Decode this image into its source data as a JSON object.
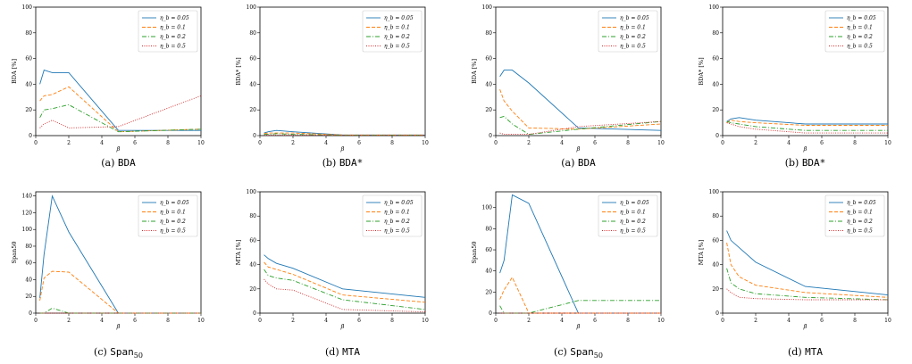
{
  "colors": {
    "series": [
      "#1f77b4",
      "#ff7f0e",
      "#2ca02c",
      "#d62728"
    ],
    "dash": [
      "",
      "4,2",
      "5,2,1,2",
      "1,1.5"
    ]
  },
  "chart_data": [
    {
      "type": "line",
      "caption": "(a) BDA",
      "caption_mono": true,
      "ylabel": "BDA [%]",
      "xlabel": "β",
      "ylim": [
        0,
        100
      ],
      "yticks": [
        0,
        20,
        40,
        60,
        80,
        100
      ],
      "xlim": [
        0,
        10
      ],
      "xticks": [
        0,
        2,
        4,
        6,
        8,
        10
      ],
      "legend": "top-right",
      "series": [
        {
          "name": "η_b = 0.05",
          "x": [
            0.25,
            0.5,
            1,
            2,
            5,
            10
          ],
          "y": [
            40,
            51,
            49,
            49,
            4,
            4
          ]
        },
        {
          "name": "η_b = 0.1",
          "x": [
            0.25,
            0.5,
            1,
            2,
            5,
            10
          ],
          "y": [
            27,
            31,
            32,
            38,
            3,
            5
          ]
        },
        {
          "name": "η_b = 0.2",
          "x": [
            0.25,
            0.5,
            1,
            2,
            5,
            10
          ],
          "y": [
            14,
            20,
            21,
            24,
            3,
            5
          ]
        },
        {
          "name": "η_b = 0.5",
          "x": [
            0.25,
            0.5,
            1,
            2,
            5,
            10
          ],
          "y": [
            6,
            9,
            12,
            6,
            7,
            31
          ]
        }
      ]
    },
    {
      "type": "line",
      "caption": "(b) BDA*",
      "caption_mono": true,
      "ylabel": "BDA* [%]",
      "xlabel": "β",
      "ylim": [
        0,
        100
      ],
      "yticks": [
        0,
        20,
        40,
        60,
        80,
        100
      ],
      "xlim": [
        0,
        10
      ],
      "xticks": [
        0,
        2,
        4,
        6,
        8,
        10
      ],
      "legend": "top-right",
      "series": [
        {
          "name": "η_b = 0.05",
          "x": [
            0.25,
            0.5,
            1,
            2,
            5,
            10
          ],
          "y": [
            2,
            3,
            4,
            3,
            0.5,
            0.5
          ]
        },
        {
          "name": "η_b = 0.1",
          "x": [
            0.25,
            0.5,
            1,
            2,
            5,
            10
          ],
          "y": [
            1.5,
            2,
            2,
            2,
            0.5,
            0.5
          ]
        },
        {
          "name": "η_b = 0.2",
          "x": [
            0.25,
            0.5,
            1,
            2,
            5,
            10
          ],
          "y": [
            1,
            1,
            1.5,
            1,
            0.3,
            0.3
          ]
        },
        {
          "name": "η_b = 0.5",
          "x": [
            0.25,
            0.5,
            1,
            2,
            5,
            10
          ],
          "y": [
            0.5,
            0.5,
            0.5,
            0.5,
            0.3,
            0.3
          ]
        }
      ]
    },
    {
      "type": "line",
      "caption": "(a) BDA",
      "caption_mono": true,
      "ylabel": "BDA [%]",
      "xlabel": "β",
      "ylim": [
        0,
        100
      ],
      "yticks": [
        0,
        20,
        40,
        60,
        80,
        100
      ],
      "xlim": [
        0,
        10
      ],
      "xticks": [
        0,
        2,
        4,
        6,
        8,
        10
      ],
      "legend": "top-right",
      "series": [
        {
          "name": "η_b = 0.05",
          "x": [
            0.25,
            0.5,
            1,
            2,
            5,
            10
          ],
          "y": [
            46,
            51,
            51,
            41,
            6,
            4
          ]
        },
        {
          "name": "η_b = 0.1",
          "x": [
            0.25,
            0.5,
            1,
            2,
            5,
            10
          ],
          "y": [
            36,
            27,
            19,
            6,
            5,
            9
          ]
        },
        {
          "name": "η_b = 0.2",
          "x": [
            0.25,
            0.5,
            1,
            2,
            5,
            10
          ],
          "y": [
            14,
            15,
            9,
            1,
            5,
            11
          ]
        },
        {
          "name": "η_b = 0.5",
          "x": [
            0.25,
            0.5,
            1,
            2,
            5,
            10
          ],
          "y": [
            2,
            1,
            1,
            1,
            7,
            11
          ]
        }
      ]
    },
    {
      "type": "line",
      "caption": "(b) BDA*",
      "caption_mono": true,
      "ylabel": "BDA* [%]",
      "xlabel": "β",
      "ylim": [
        0,
        100
      ],
      "yticks": [
        0,
        20,
        40,
        60,
        80,
        100
      ],
      "xlim": [
        0,
        10
      ],
      "xticks": [
        0,
        2,
        4,
        6,
        8,
        10
      ],
      "legend": "top-right",
      "series": [
        {
          "name": "η_b = 0.05",
          "x": [
            0.25,
            0.5,
            1,
            2,
            5,
            10
          ],
          "y": [
            11,
            13,
            14,
            12,
            9,
            9
          ]
        },
        {
          "name": "η_b = 0.1",
          "x": [
            0.25,
            0.5,
            1,
            2,
            5,
            10
          ],
          "y": [
            10,
            12,
            11,
            10,
            8,
            8
          ]
        },
        {
          "name": "η_b = 0.2",
          "x": [
            0.25,
            0.5,
            1,
            2,
            5,
            10
          ],
          "y": [
            11,
            10,
            9,
            7,
            4,
            4
          ]
        },
        {
          "name": "η_b = 0.5",
          "x": [
            0.25,
            0.5,
            1,
            2,
            5,
            10
          ],
          "y": [
            10,
            9,
            7,
            5,
            2,
            2
          ]
        }
      ]
    },
    {
      "type": "line",
      "caption": "(c) Span50",
      "caption_mono": true,
      "caption_sub": "50",
      "caption_main": "Span",
      "ylabel": "Span50",
      "xlabel": "β",
      "ylim": [
        0,
        145
      ],
      "yticks": [
        0,
        20,
        40,
        60,
        80,
        100,
        120,
        140
      ],
      "xlim": [
        0,
        10
      ],
      "xticks": [
        0,
        2,
        4,
        6,
        8,
        10
      ],
      "legend": "top-right",
      "series": [
        {
          "name": "η_b = 0.05",
          "x": [
            0.25,
            0.5,
            1,
            2,
            5,
            10
          ],
          "y": [
            18,
            70,
            140,
            97,
            0,
            0
          ]
        },
        {
          "name": "η_b = 0.1",
          "x": [
            0.25,
            0.5,
            1,
            2,
            5,
            10
          ],
          "y": [
            15,
            42,
            50,
            49,
            0,
            0
          ]
        },
        {
          "name": "η_b = 0.2",
          "x": [
            0.25,
            0.5,
            1,
            2,
            5,
            10
          ],
          "y": [
            0,
            0,
            6,
            0,
            0,
            0
          ]
        },
        {
          "name": "η_b = 0.5",
          "x": [
            0.25,
            0.5,
            1,
            2,
            5,
            10
          ],
          "y": [
            0,
            0,
            0,
            0,
            0,
            0
          ]
        }
      ]
    },
    {
      "type": "line",
      "caption": "(d) MTA",
      "caption_mono": true,
      "ylabel": "MTA [%]",
      "xlabel": "β",
      "ylim": [
        0,
        100
      ],
      "yticks": [
        0,
        20,
        40,
        60,
        80,
        100
      ],
      "xlim": [
        0,
        10
      ],
      "xticks": [
        0,
        2,
        4,
        6,
        8,
        10
      ],
      "legend": "top-right",
      "series": [
        {
          "name": "η_b = 0.05",
          "x": [
            0.25,
            0.5,
            1,
            2,
            5,
            10
          ],
          "y": [
            48,
            45,
            41,
            37,
            20,
            13
          ]
        },
        {
          "name": "η_b = 0.1",
          "x": [
            0.25,
            0.5,
            1,
            2,
            5,
            10
          ],
          "y": [
            42,
            38,
            36,
            32,
            15,
            9
          ]
        },
        {
          "name": "η_b = 0.2",
          "x": [
            0.25,
            0.5,
            1,
            2,
            5,
            10
          ],
          "y": [
            36,
            31,
            29,
            27,
            11,
            3
          ]
        },
        {
          "name": "η_b = 0.5",
          "x": [
            0.25,
            0.5,
            1,
            2,
            5,
            10
          ],
          "y": [
            28,
            24,
            20,
            19,
            3,
            1
          ]
        }
      ]
    },
    {
      "type": "line",
      "caption": "(c) Span50",
      "caption_mono": true,
      "caption_sub": "50",
      "caption_main": "Span",
      "ylabel": "Span50",
      "xlabel": "β",
      "ylim": [
        0,
        115
      ],
      "yticks": [
        0,
        20,
        40,
        60,
        80,
        100
      ],
      "xlim": [
        0,
        10
      ],
      "xticks": [
        0,
        2,
        4,
        6,
        8,
        10
      ],
      "legend": "top-right",
      "series": [
        {
          "name": "η_b = 0.05",
          "x": [
            0.25,
            0.5,
            1,
            2,
            5,
            10
          ],
          "y": [
            38,
            50,
            112,
            104,
            0,
            0
          ]
        },
        {
          "name": "η_b = 0.1",
          "x": [
            0.25,
            0.5,
            1,
            2,
            5,
            10
          ],
          "y": [
            13,
            22,
            34,
            0,
            0,
            0
          ]
        },
        {
          "name": "η_b = 0.2",
          "x": [
            0.25,
            0.5,
            1,
            2,
            5,
            10
          ],
          "y": [
            7,
            0,
            0,
            0,
            12,
            12
          ]
        },
        {
          "name": "η_b = 0.5",
          "x": [
            0.25,
            0.5,
            1,
            2,
            5,
            10
          ],
          "y": [
            0,
            0,
            0,
            0,
            0,
            0
          ]
        }
      ]
    },
    {
      "type": "line",
      "caption": "(d) MTA",
      "caption_mono": true,
      "ylabel": "MTA [%]",
      "xlabel": "β",
      "ylim": [
        0,
        100
      ],
      "yticks": [
        0,
        20,
        40,
        60,
        80,
        100
      ],
      "xlim": [
        0,
        10
      ],
      "xticks": [
        0,
        2,
        4,
        6,
        8,
        10
      ],
      "legend": "top-right",
      "series": [
        {
          "name": "η_b = 0.05",
          "x": [
            0.25,
            0.5,
            1,
            2,
            5,
            10
          ],
          "y": [
            68,
            60,
            54,
            42,
            22,
            15
          ]
        },
        {
          "name": "η_b = 0.1",
          "x": [
            0.25,
            0.5,
            1,
            2,
            5,
            10
          ],
          "y": [
            58,
            40,
            30,
            23,
            17,
            13
          ]
        },
        {
          "name": "η_b = 0.2",
          "x": [
            0.25,
            0.5,
            1,
            2,
            5,
            10
          ],
          "y": [
            37,
            25,
            20,
            16,
            13,
            11
          ]
        },
        {
          "name": "η_b = 0.5",
          "x": [
            0.25,
            0.5,
            1,
            2,
            5,
            10
          ],
          "y": [
            20,
            17,
            13,
            12,
            11,
            11
          ]
        }
      ]
    }
  ]
}
